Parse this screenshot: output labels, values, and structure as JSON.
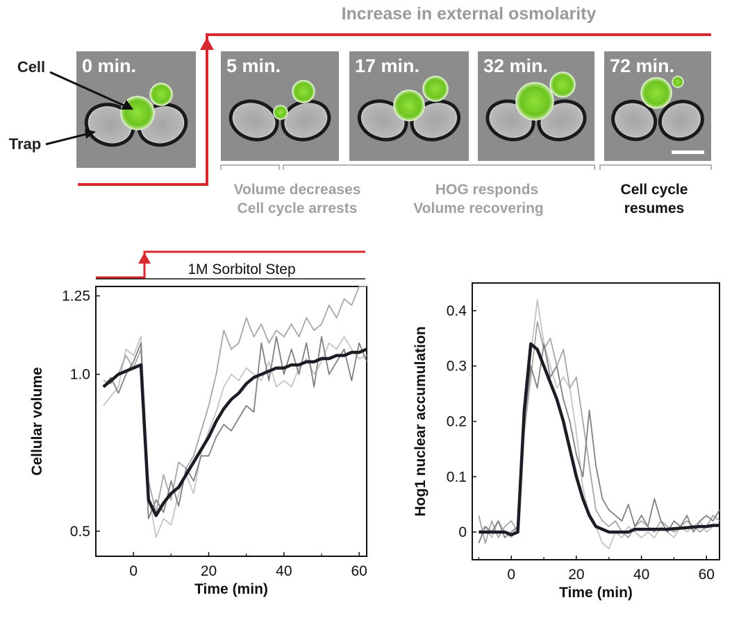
{
  "top": {
    "title": "Increase in external osmolarity",
    "cell_label": "Cell",
    "trap_label": "Trap",
    "panels": [
      {
        "time": "0 min."
      },
      {
        "time": "5 min."
      },
      {
        "time": "17 min."
      },
      {
        "time": "32 min."
      },
      {
        "time": "72 min."
      }
    ],
    "phases": [
      {
        "lines": [
          "Volume decreases",
          "Cell cycle arrests"
        ]
      },
      {
        "lines": [
          "HOG responds",
          "Volume recovering"
        ]
      },
      {
        "lines": [
          "Cell cycle",
          "resumes"
        ]
      }
    ]
  },
  "colors": {
    "step_red": "#d8282f",
    "cell_green": "#7ed321",
    "micrograph_gray": "#8c8c8c",
    "caption_gray": "#999999",
    "mean_line": "#1c1c24"
  },
  "chart_data": [
    {
      "type": "line",
      "annotation": "1M Sorbitol Step",
      "xlabel": "Time (min)",
      "ylabel": "Cellular volume",
      "xlim": [
        -10,
        62
      ],
      "ylim": [
        0.42,
        1.28
      ],
      "xticks": [
        0,
        20,
        40,
        60
      ],
      "ytick_labels": [
        {
          "value": 1.25,
          "label": "1.25"
        },
        {
          "value": 1.0,
          "label": "1.0"
        },
        {
          "value": 0.5,
          "label": "0.5"
        }
      ],
      "x": [
        -8,
        -6,
        -4,
        -2,
        0,
        2,
        4,
        6,
        8,
        10,
        12,
        14,
        16,
        18,
        20,
        22,
        24,
        26,
        28,
        30,
        32,
        34,
        36,
        38,
        40,
        42,
        44,
        46,
        48,
        50,
        52,
        54,
        56,
        58,
        60,
        62
      ],
      "series": [
        {
          "values": [
            0.9,
            0.93,
            0.96,
            1.08,
            1.06,
            1.12,
            0.62,
            0.48,
            0.54,
            0.52,
            0.62,
            0.68,
            0.62,
            0.75,
            0.82,
            0.88,
            0.96,
            1.0,
            0.98,
            1.02,
            1.0,
            0.98,
            1.04,
            0.96,
            0.98,
            0.96,
            1.02,
            1.05,
            1.0,
            1.04,
            1.1,
            1.08,
            1.12,
            1.08,
            1.05,
            1.06
          ]
        },
        {
          "values": [
            0.98,
            0.97,
            1.0,
            1.06,
            1.02,
            1.08,
            0.66,
            0.56,
            0.68,
            0.6,
            0.72,
            0.7,
            0.74,
            0.82,
            0.9,
            1.0,
            1.14,
            1.08,
            1.1,
            1.18,
            1.12,
            1.16,
            1.1,
            1.14,
            1.12,
            1.16,
            1.12,
            1.18,
            1.14,
            1.16,
            1.22,
            1.18,
            1.24,
            1.22,
            1.28,
            1.29
          ]
        },
        {
          "values": [
            0.96,
            0.99,
            0.94,
            1.0,
            1.04,
            1.1,
            0.54,
            0.6,
            0.56,
            0.66,
            0.58,
            0.7,
            0.66,
            0.74,
            0.74,
            0.8,
            0.84,
            0.82,
            0.86,
            0.9,
            0.88,
            1.1,
            0.98,
            1.12,
            1.0,
            1.08,
            1.0,
            1.1,
            0.96,
            1.12,
            1.0,
            1.04,
            1.08,
            0.98,
            1.1,
            1.04
          ]
        },
        {
          "name_hidden": true,
          "mean": true,
          "values": [
            0.96,
            0.98,
            1.0,
            1.01,
            1.02,
            1.03,
            0.6,
            0.55,
            0.59,
            0.62,
            0.64,
            0.68,
            0.72,
            0.76,
            0.8,
            0.85,
            0.89,
            0.92,
            0.94,
            0.97,
            0.99,
            1.0,
            1.01,
            1.02,
            1.02,
            1.03,
            1.03,
            1.04,
            1.04,
            1.05,
            1.05,
            1.06,
            1.06,
            1.07,
            1.07,
            1.08
          ]
        }
      ]
    },
    {
      "type": "line",
      "xlabel": "Time (min)",
      "ylabel": "Hog1 nuclear accumulation",
      "xlim": [
        -12,
        64
      ],
      "ylim": [
        -0.05,
        0.45
      ],
      "xticks": [
        0,
        20,
        40,
        60
      ],
      "ytick_labels": [
        {
          "value": 0.4,
          "label": "0.4"
        },
        {
          "value": 0.3,
          "label": "0.3"
        },
        {
          "value": 0.2,
          "label": "0.2"
        },
        {
          "value": 0.1,
          "label": "0.1"
        },
        {
          "value": 0.0,
          "label": "0"
        }
      ],
      "x": [
        -10,
        -8,
        -6,
        -4,
        -2,
        0,
        2,
        4,
        6,
        8,
        10,
        12,
        14,
        16,
        18,
        20,
        22,
        24,
        26,
        28,
        30,
        32,
        34,
        36,
        38,
        40,
        42,
        44,
        46,
        48,
        50,
        52,
        54,
        56,
        58,
        60,
        62,
        64
      ],
      "series": [
        {
          "values": [
            0.0,
            0.01,
            -0.01,
            0.02,
            0.0,
            -0.01,
            0.01,
            0.22,
            0.32,
            0.42,
            0.34,
            0.3,
            0.26,
            0.28,
            0.26,
            0.18,
            0.08,
            0.03,
            0.01,
            -0.02,
            -0.03,
            0.0,
            -0.01,
            0.01,
            0.0,
            -0.01,
            0.0,
            -0.01,
            0.01,
            0.0,
            -0.01,
            0.01,
            0.0,
            0.01,
            0.02,
            0.0,
            0.01,
            0.01
          ]
        },
        {
          "values": [
            0.03,
            -0.02,
            0.02,
            -0.01,
            0.01,
            0.02,
            0.0,
            0.18,
            0.28,
            0.38,
            0.33,
            0.35,
            0.3,
            0.33,
            0.26,
            0.28,
            0.2,
            0.12,
            0.04,
            0.02,
            0.01,
            0.02,
            0.0,
            -0.01,
            0.01,
            0.02,
            0.01,
            0.0,
            0.02,
            0.01,
            0.0,
            0.01,
            0.02,
            0.01,
            0.0,
            0.01,
            0.03,
            0.02
          ]
        },
        {
          "values": [
            -0.02,
            0.01,
            0.0,
            0.02,
            -0.01,
            0.0,
            0.01,
            0.2,
            0.3,
            0.26,
            0.34,
            0.28,
            0.3,
            0.24,
            0.2,
            0.14,
            0.1,
            0.22,
            0.12,
            0.06,
            0.04,
            0.03,
            0.02,
            0.05,
            0.01,
            0.03,
            0.01,
            0.06,
            0.02,
            0.0,
            0.02,
            0.01,
            0.03,
            0.0,
            0.02,
            0.03,
            0.02,
            0.04
          ]
        },
        {
          "mean": true,
          "values": [
            0.0,
            0.0,
            0.0,
            0.0,
            0.0,
            -0.005,
            0.0,
            0.22,
            0.34,
            0.33,
            0.3,
            0.27,
            0.24,
            0.2,
            0.15,
            0.1,
            0.06,
            0.03,
            0.01,
            0.005,
            0.0,
            0.0,
            0.0,
            0.0,
            0.005,
            0.005,
            0.005,
            0.005,
            0.005,
            0.005,
            0.006,
            0.007,
            0.008,
            0.009,
            0.01,
            0.01,
            0.012,
            0.012
          ]
        }
      ]
    }
  ]
}
